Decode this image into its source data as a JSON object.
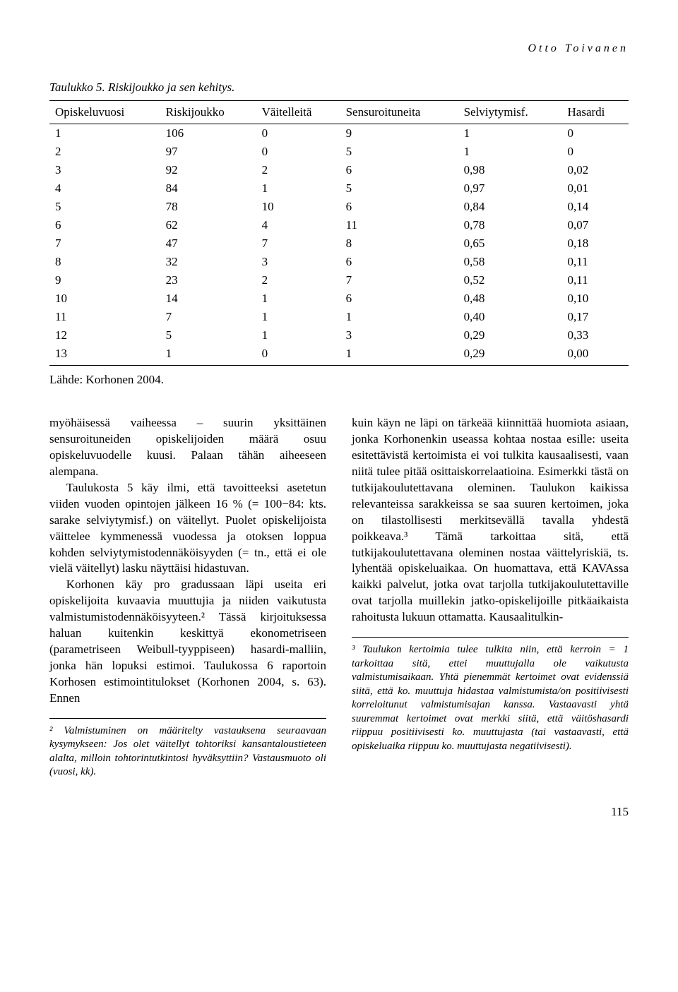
{
  "running_head": "Otto Toivanen",
  "table": {
    "caption": "Taulukko 5. Riskijoukko ja sen kehitys.",
    "columns": [
      "Opiskeluvuosi",
      "Riskijoukko",
      "Väitelleitä",
      "Sensuroituneita",
      "Selviytymisf.",
      "Hasardi"
    ],
    "rows": [
      [
        "1",
        "106",
        "0",
        "9",
        "1",
        "0"
      ],
      [
        "2",
        "97",
        "0",
        "5",
        "1",
        "0"
      ],
      [
        "3",
        "92",
        "2",
        "6",
        "0,98",
        "0,02"
      ],
      [
        "4",
        "84",
        "1",
        "5",
        "0,97",
        "0,01"
      ],
      [
        "5",
        "78",
        "10",
        "6",
        "0,84",
        "0,14"
      ],
      [
        "6",
        "62",
        "4",
        "11",
        "0,78",
        "0,07"
      ],
      [
        "7",
        "47",
        "7",
        "8",
        "0,65",
        "0,18"
      ],
      [
        "8",
        "32",
        "3",
        "6",
        "0,58",
        "0,11"
      ],
      [
        "9",
        "23",
        "2",
        "7",
        "0,52",
        "0,11"
      ],
      [
        "10",
        "14",
        "1",
        "6",
        "0,48",
        "0,10"
      ],
      [
        "11",
        "7",
        "1",
        "1",
        "0,40",
        "0,17"
      ],
      [
        "12",
        "5",
        "1",
        "3",
        "0,29",
        "0,33"
      ],
      [
        "13",
        "1",
        "0",
        "1",
        "0,29",
        "0,00"
      ]
    ],
    "source": "Lähde: Korhonen 2004."
  },
  "left_col": {
    "p1": "myöhäisessä vaiheessa – suurin yksittäinen sensuroituneiden opiskelijoiden määrä osuu opiskeluvuodelle kuusi. Palaan tähän aiheeseen alempana.",
    "p2": "Taulukosta 5 käy ilmi, että tavoitteeksi asetetun viiden vuoden opintojen jälkeen 16 % (= 100−84: kts. sarake selviytymisf.) on väitellyt. Puolet opiskelijoista väittelee kymmenessä vuodessa ja otoksen loppua kohden selviytymistodennäköisyyden (= tn., että ei ole vielä väitellyt) lasku näyttäisi hidastuvan.",
    "p3": "Korhonen käy pro gradussaan läpi useita eri opiskelijoita kuvaavia muuttujia ja niiden vaikutusta valmistumistodennäköisyyteen.² Tässä kirjoituksessa haluan kuitenkin keskittyä ekonometriseen (parametriseen Weibull-tyyppiseen) hasardi-malliin, jonka hän lopuksi estimoi. Taulukossa 6 raportoin Korhosen estimointitulokset (Korhonen 2004, s. 63). Ennen",
    "fn": "² Valmistuminen on määritelty vastauksena seuraavaan kysymykseen: Jos olet väitellyt tohtoriksi kansantaloustieteen alalta, milloin tohtorintutkintosi hyväksyttiin? Vastausmuoto oli (vuosi, kk)."
  },
  "right_col": {
    "p1": "kuin käyn ne läpi on tärkeää kiinnittää huomiota asiaan, jonka Korhonenkin useassa kohtaa nostaa esille: useita esitettävistä kertoimista ei voi tulkita kausaalisesti, vaan niitä tulee pitää osittaiskorrelaatioina. Esimerkki tästä on tutkijakoulutettavana oleminen. Taulukon kaikissa relevanteissa sarakkeissa se saa suuren kertoimen, joka on tilastollisesti merkitsevällä tavalla yhdestä poikkeava.³ Tämä tarkoittaa sitä, että tutkijakoulutettavana oleminen nostaa väittelyriskiä, ts. lyhentää opiskeluaikaa. On huomattava, että KAVAssa kaikki palvelut, jotka ovat tarjolla tutkijakoulutettaville ovat tarjolla muillekin jatko-opiskelijoille pitkäaikaista rahoitusta lukuun ottamatta. Kausaalitulkin-",
    "fn": "³ Taulukon kertoimia tulee tulkita niin, että kerroin = 1 tarkoittaa sitä, ettei muuttujalla ole vaikutusta valmistumisaikaan. Yhtä pienemmät kertoimet ovat evidenssiä siitä, että ko. muuttuja hidastaa valmistumista/on positiivisesti korreloitunut valmistumisajan kanssa. Vastaavasti yhtä suuremmat kertoimet ovat merkki siitä, että väitöshasardi riippuu positiivisesti ko. muuttujasta (tai vastaavasti, että opiskeluaika riippuu ko. muuttujasta negatiivisesti)."
  },
  "page_number": "115"
}
